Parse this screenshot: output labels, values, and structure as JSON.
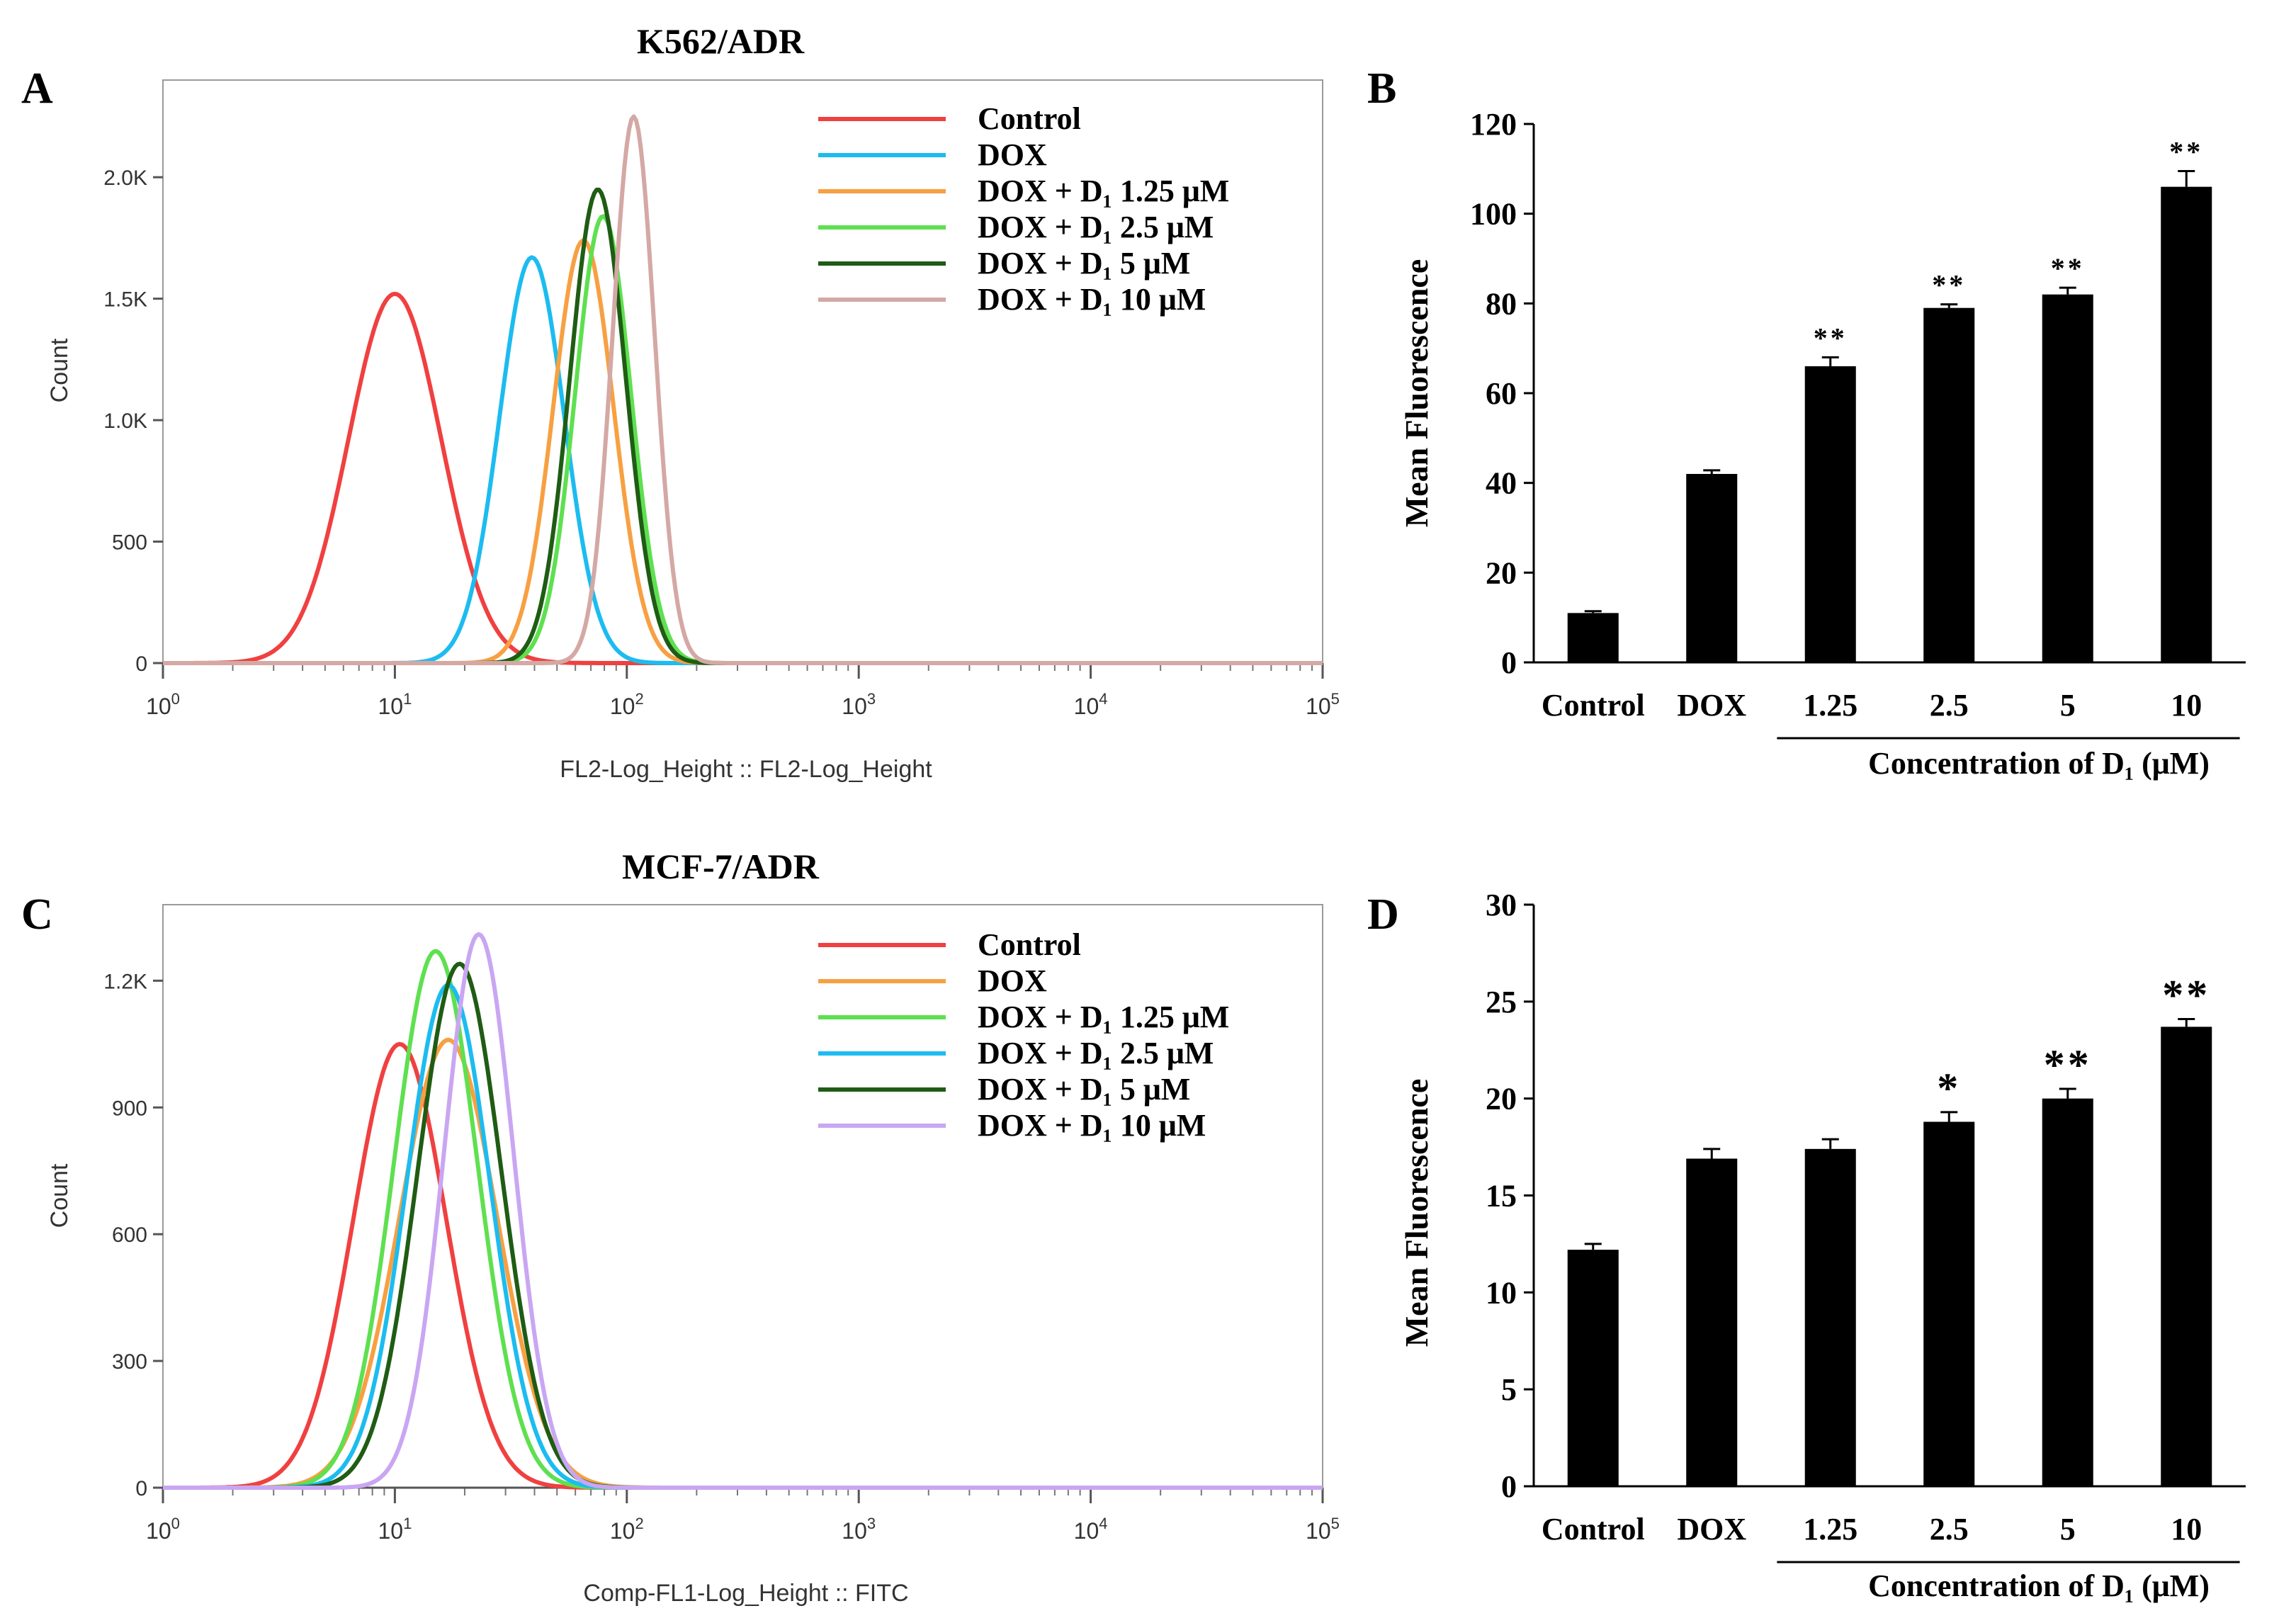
{
  "chart_data": [
    {
      "panel_letter": "A",
      "type": "line",
      "subtype": "flow-cytometry-histogram",
      "title": "K562/ADR",
      "xlabel": "FL2-Log_Height :: FL2-Log_Height",
      "ylabel": "Count",
      "xscale": "log",
      "xlim": [
        1,
        100000
      ],
      "ylim": [
        0,
        2400
      ],
      "x_ticks": [
        {
          "value": 1,
          "base": "10",
          "exp": "0"
        },
        {
          "value": 10,
          "base": "10",
          "exp": "1"
        },
        {
          "value": 100,
          "base": "10",
          "exp": "2"
        },
        {
          "value": 1000,
          "base": "10",
          "exp": "3"
        },
        {
          "value": 10000,
          "base": "10",
          "exp": "4"
        },
        {
          "value": 100000,
          "base": "10",
          "exp": "5"
        }
      ],
      "y_ticks": [
        {
          "value": 0,
          "label": "0"
        },
        {
          "value": 500,
          "label": "500"
        },
        {
          "value": 1000,
          "label": "1.0K"
        },
        {
          "value": 1500,
          "label": "1.5K"
        },
        {
          "value": 2000,
          "label": "2.0K"
        }
      ],
      "legend_position": "top-right",
      "series": [
        {
          "name": "Control",
          "color": "#f04040",
          "peak_x": 10,
          "peak_y": 1520,
          "width": 0.2
        },
        {
          "name": "DOX",
          "color": "#1cbcf0",
          "peak_x": 39,
          "peak_y": 1670,
          "width": 0.14
        },
        {
          "name": "DOX + D₁ 1.25 μM",
          "color": "#f7a042",
          "peak_x": 65,
          "peak_y": 1740,
          "width": 0.13
        },
        {
          "name": "DOX + D₁ 2.5 μM",
          "color": "#5ee050",
          "peak_x": 79,
          "peak_y": 1840,
          "width": 0.12
        },
        {
          "name": "DOX + D₁ 5 μM",
          "color": "#1f5c14",
          "peak_x": 75,
          "peak_y": 1950,
          "width": 0.12
        },
        {
          "name": "DOX + D₁ 10 μM",
          "color": "#d4a8a4",
          "peak_x": 107,
          "peak_y": 2250,
          "width": 0.09
        }
      ]
    },
    {
      "panel_letter": "B",
      "type": "bar",
      "title": "",
      "ylabel": "Mean Fluorescence",
      "xlabel": "Concentration of D₁ (μM)",
      "ylim": [
        0,
        120
      ],
      "y_ticks": [
        "0",
        "20",
        "40",
        "60",
        "80",
        "100",
        "120"
      ],
      "categories": [
        "Control",
        "DOX",
        "1.25",
        "2.5",
        "5",
        "10"
      ],
      "values": [
        11,
        42,
        66,
        79,
        82,
        106
      ],
      "errors": [
        0.4,
        0.8,
        2,
        0.8,
        1.5,
        3.5
      ],
      "significance": [
        "",
        "",
        "**",
        "**",
        "**",
        "**"
      ]
    },
    {
      "panel_letter": "C",
      "type": "line",
      "subtype": "flow-cytometry-histogram",
      "title": "MCF-7/ADR",
      "xlabel": "Comp-FL1-Log_Height :: FITC",
      "ylabel": "Count",
      "xscale": "log",
      "xlim": [
        1,
        100000
      ],
      "ylim": [
        0,
        1380
      ],
      "x_ticks": [
        {
          "value": 1,
          "base": "10",
          "exp": "0"
        },
        {
          "value": 10,
          "base": "10",
          "exp": "1"
        },
        {
          "value": 100,
          "base": "10",
          "exp": "2"
        },
        {
          "value": 1000,
          "base": "10",
          "exp": "3"
        },
        {
          "value": 10000,
          "base": "10",
          "exp": "4"
        },
        {
          "value": 100000,
          "base": "10",
          "exp": "5"
        }
      ],
      "y_ticks": [
        {
          "value": 0,
          "label": "0"
        },
        {
          "value": 300,
          "label": "300"
        },
        {
          "value": 600,
          "label": "600"
        },
        {
          "value": 900,
          "label": "900"
        },
        {
          "value": 1200,
          "label": "1.2K"
        }
      ],
      "legend_position": "top-right",
      "series": [
        {
          "name": "Control",
          "color": "#f04040",
          "peak_x": 10.5,
          "peak_y": 1050,
          "width": 0.2
        },
        {
          "name": "DOX",
          "color": "#f7a042",
          "peak_x": 17,
          "peak_y": 1060,
          "width": 0.21
        },
        {
          "name": "DOX + D₁ 1.25 μM",
          "color": "#5ee050",
          "peak_x": 15,
          "peak_y": 1270,
          "width": 0.18
        },
        {
          "name": "DOX + D₁ 2.5 μM",
          "color": "#1cbcf0",
          "peak_x": 17,
          "peak_y": 1190,
          "width": 0.18
        },
        {
          "name": "DOX + D₁ 5 μM",
          "color": "#1f5c14",
          "peak_x": 19,
          "peak_y": 1240,
          "width": 0.18
        },
        {
          "name": "DOX + D₁ 10 μM",
          "color": "#c9a6f2",
          "peak_x": 23,
          "peak_y": 1310,
          "width": 0.15
        }
      ]
    },
    {
      "panel_letter": "D",
      "type": "bar",
      "title": "",
      "ylabel": "Mean Fluorescence",
      "xlabel": "Concentration of D₁ (μM)",
      "ylim": [
        0,
        30
      ],
      "y_ticks": [
        "0",
        "5",
        "10",
        "15",
        "20",
        "25",
        "30"
      ],
      "categories": [
        "Control",
        "DOX",
        "1.25",
        "2.5",
        "5",
        "10"
      ],
      "values": [
        12.2,
        16.9,
        17.4,
        18.8,
        20.0,
        23.7
      ],
      "errors": [
        0.3,
        0.5,
        0.5,
        0.5,
        0.5,
        0.4
      ],
      "significance": [
        "",
        "",
        "",
        "*",
        "**",
        "**"
      ]
    }
  ]
}
